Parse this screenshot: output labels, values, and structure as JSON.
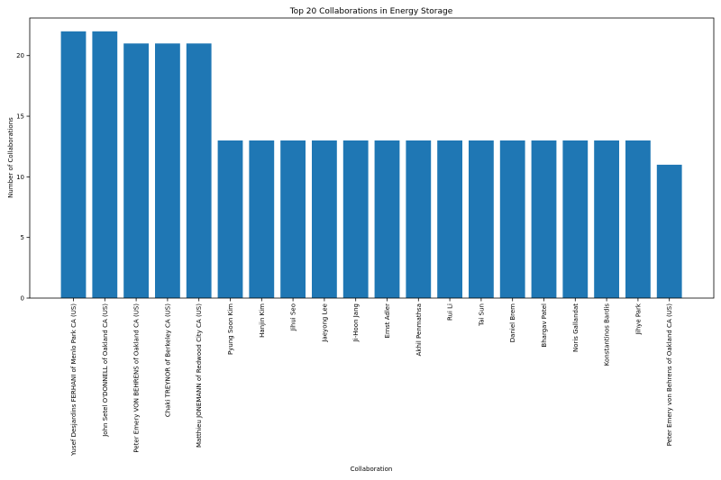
{
  "chart_data": {
    "type": "bar",
    "title": "Top 20 Collaborations in Energy Storage",
    "xlabel": "Collaboration",
    "ylabel": "Number of Collaborations",
    "ylim": [
      0,
      23.1
    ],
    "yticks": [
      0,
      5,
      10,
      15,
      20
    ],
    "grid": false,
    "bar_color": "#1f77b4",
    "categories": [
      "Yusef Desjardins FERHANI of Menlo Park CA (US)",
      "John Setel O'DONNELL of Oakland CA (US)",
      "Peter Emery VON BEHRENS of Oakland CA (US)",
      "Chaki TREYNOR of Berkeley CA (US)",
      "Matthieu JONEMANN of Redwood City CA (US)",
      "Pyung Soon Kim",
      "Hanjin Kim",
      "Jihui Seo",
      "Jaeyong Lee",
      "Ji-Hoon Jang",
      "Ernst Adler",
      "Akhil Penmathsa",
      "Rui Li",
      "Tai Sun",
      "Daniel Brem",
      "Bhargav Patel",
      "Noris Gallandat",
      "Konstantinos Bardis",
      "Jihye Park",
      "Peter Emery von Behrens of Oakland CA (US)"
    ],
    "values": [
      22,
      22,
      21,
      21,
      21,
      13,
      13,
      13,
      13,
      13,
      13,
      13,
      13,
      13,
      13,
      13,
      13,
      13,
      13,
      11
    ]
  }
}
